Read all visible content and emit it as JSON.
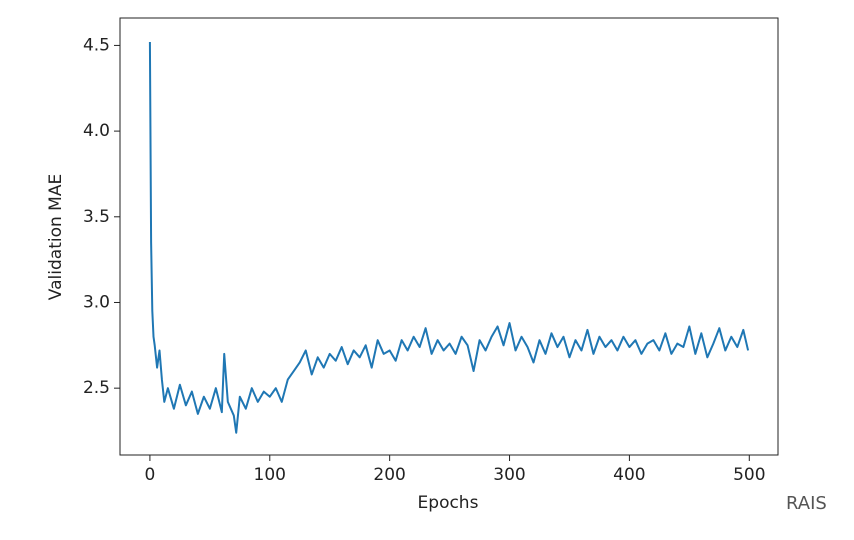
{
  "chart_data": {
    "type": "line",
    "xlabel": "Epochs",
    "ylabel": "Validation MAE",
    "watermark": "RAIS",
    "x": [
      0,
      1,
      2,
      3,
      4,
      6,
      8,
      10,
      12,
      15,
      20,
      25,
      30,
      35,
      40,
      45,
      50,
      55,
      60,
      62,
      65,
      70,
      72,
      75,
      80,
      85,
      90,
      95,
      100,
      105,
      110,
      115,
      120,
      125,
      130,
      135,
      140,
      145,
      150,
      155,
      160,
      165,
      170,
      175,
      180,
      185,
      190,
      195,
      200,
      205,
      210,
      215,
      220,
      225,
      230,
      235,
      240,
      245,
      250,
      255,
      260,
      265,
      270,
      275,
      280,
      285,
      290,
      295,
      300,
      305,
      310,
      315,
      320,
      325,
      330,
      335,
      340,
      345,
      350,
      355,
      360,
      365,
      370,
      375,
      380,
      385,
      390,
      395,
      400,
      405,
      410,
      415,
      420,
      425,
      430,
      435,
      440,
      445,
      450,
      455,
      460,
      465,
      470,
      475,
      480,
      485,
      490,
      495,
      499
    ],
    "series": [
      {
        "color": "#1f77b4",
        "values": [
          4.52,
          3.35,
          2.95,
          2.8,
          2.75,
          2.62,
          2.72,
          2.55,
          2.42,
          2.5,
          2.38,
          2.52,
          2.4,
          2.48,
          2.35,
          2.45,
          2.38,
          2.5,
          2.36,
          2.7,
          2.42,
          2.34,
          2.24,
          2.45,
          2.38,
          2.5,
          2.42,
          2.48,
          2.45,
          2.5,
          2.42,
          2.55,
          2.6,
          2.65,
          2.72,
          2.58,
          2.68,
          2.62,
          2.7,
          2.66,
          2.74,
          2.64,
          2.72,
          2.68,
          2.75,
          2.62,
          2.78,
          2.7,
          2.72,
          2.66,
          2.78,
          2.72,
          2.8,
          2.74,
          2.85,
          2.7,
          2.78,
          2.72,
          2.76,
          2.7,
          2.8,
          2.75,
          2.6,
          2.78,
          2.72,
          2.8,
          2.86,
          2.75,
          2.88,
          2.72,
          2.8,
          2.74,
          2.65,
          2.78,
          2.7,
          2.82,
          2.74,
          2.8,
          2.68,
          2.78,
          2.72,
          2.84,
          2.7,
          2.8,
          2.74,
          2.78,
          2.72,
          2.8,
          2.74,
          2.78,
          2.7,
          2.76,
          2.78,
          2.72,
          2.82,
          2.7,
          2.76,
          2.74,
          2.86,
          2.7,
          2.82,
          2.68,
          2.76,
          2.85,
          2.72,
          2.8,
          2.74,
          2.84,
          2.72
        ]
      }
    ],
    "xlim": [
      -24.95,
      523.95
    ],
    "ylim": [
      2.11,
      4.66
    ],
    "xticks": [
      0,
      100,
      200,
      300,
      400,
      500
    ],
    "yticks": [
      2.5,
      {
        "value": 3,
        "label": "3.0"
      },
      3.5,
      {
        "value": 4,
        "label": "4.0"
      },
      4.5
    ]
  }
}
